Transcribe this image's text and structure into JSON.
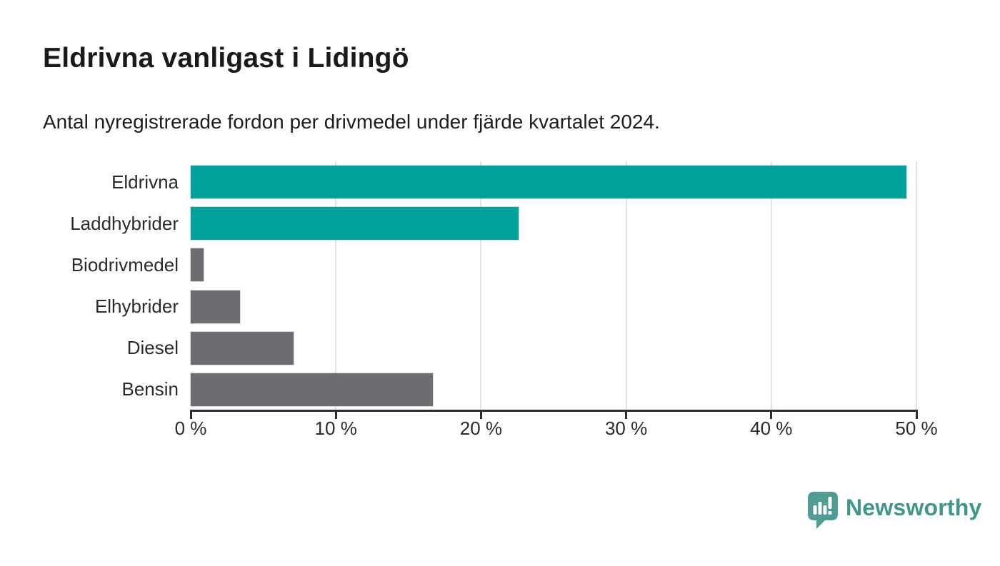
{
  "header": {
    "title": "Eldrivna vanligast i Lidingö",
    "subtitle": "Antal nyregistrerade fordon per drivmedel under fjärde kvartalet 2024."
  },
  "chart_data": {
    "type": "bar",
    "orientation": "horizontal",
    "categories": [
      "Eldrivna",
      "Laddhybrider",
      "Biodrivmedel",
      "Elhybrider",
      "Diesel",
      "Bensin"
    ],
    "values": [
      49.3,
      22.6,
      0.9,
      3.4,
      7.1,
      16.7
    ],
    "unit": "%",
    "bar_colors": [
      "#00a39c",
      "#00a39c",
      "#6d6d71",
      "#6d6d71",
      "#6d6d71",
      "#6d6d71"
    ],
    "xlim": [
      0,
      50
    ],
    "x_ticks": [
      0,
      10,
      20,
      30,
      40,
      50
    ],
    "x_tick_labels": [
      "0 %",
      "10 %",
      "20 %",
      "30 %",
      "40 %",
      "50 %"
    ],
    "grid": "vertical-only",
    "legend": "none",
    "xlabel": "",
    "ylabel": ""
  },
  "colors": {
    "accent_teal": "#00a39c",
    "bar_gray": "#6d6d71",
    "gridline": "#e4e4e4",
    "axis": "#2d2d2d",
    "text": "#1a1a1a",
    "logo_teal": "#3f968d",
    "logo_icon_teal": "#4d9d95"
  },
  "branding": {
    "logo_text": "Newsworthy"
  }
}
